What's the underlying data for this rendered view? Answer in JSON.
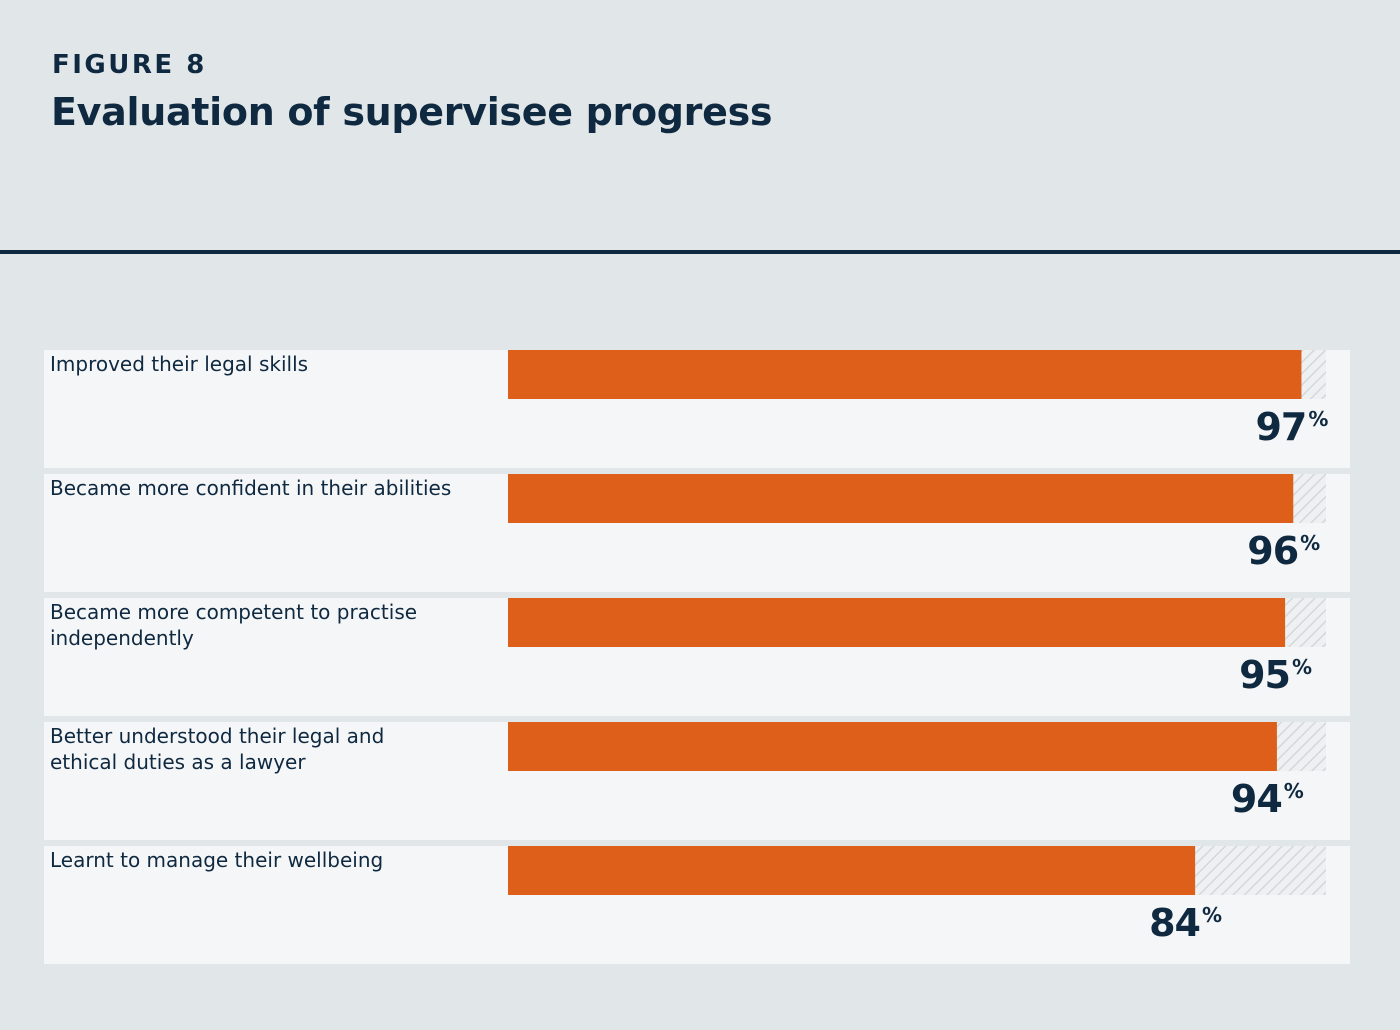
{
  "header": {
    "figure_label": "FIGURE 8",
    "title": "Evaluation of supervisee progress"
  },
  "colors": {
    "background": "#e1e6e9",
    "row_background": "#f5f6f7",
    "bar": "#dd5f19",
    "remainder_hatch": "#d5dadd",
    "text": "#0f2940"
  },
  "chart_data": {
    "type": "bar",
    "orientation": "horizontal",
    "title": "Evaluation of supervisee progress",
    "categories": [
      [
        "Improved their legal skills"
      ],
      [
        "Became more confident in their abilities"
      ],
      [
        "Became more competent to practise",
        "independently"
      ],
      [
        "Better understood their legal and",
        "ethical duties as a lawyer"
      ],
      [
        "Learnt to manage their wellbeing"
      ]
    ],
    "values": [
      97,
      96,
      95,
      94,
      84
    ],
    "value_suffix": "%",
    "xlim": [
      0,
      100
    ],
    "grid": false,
    "legend": "none"
  }
}
